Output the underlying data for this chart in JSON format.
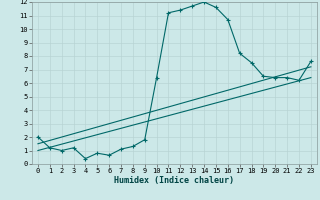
{
  "xlabel": "Humidex (Indice chaleur)",
  "background_color": "#cce8e8",
  "grid_color": "#b8d4d4",
  "line_color": "#006868",
  "xlim": [
    -0.5,
    23.5
  ],
  "ylim": [
    0,
    12
  ],
  "xticks": [
    0,
    1,
    2,
    3,
    4,
    5,
    6,
    7,
    8,
    9,
    10,
    11,
    12,
    13,
    14,
    15,
    16,
    17,
    18,
    19,
    20,
    21,
    22,
    23
  ],
  "yticks": [
    0,
    1,
    2,
    3,
    4,
    5,
    6,
    7,
    8,
    9,
    10,
    11,
    12
  ],
  "curve1_x": [
    0,
    1,
    2,
    3,
    4,
    5,
    6,
    7,
    8,
    9,
    10,
    11,
    12,
    13,
    14,
    15,
    16,
    17,
    18,
    19,
    20,
    21,
    22,
    23
  ],
  "curve1_y": [
    2.0,
    1.2,
    1.0,
    1.2,
    0.4,
    0.8,
    0.65,
    1.1,
    1.3,
    1.8,
    6.4,
    11.2,
    11.4,
    11.7,
    12.0,
    11.6,
    10.7,
    8.2,
    7.5,
    6.5,
    6.4,
    6.4,
    6.2,
    7.6
  ],
  "line2_x": [
    0,
    23
  ],
  "line2_y": [
    1.5,
    7.2
  ],
  "line3_x": [
    0,
    23
  ],
  "line3_y": [
    1.0,
    6.4
  ]
}
